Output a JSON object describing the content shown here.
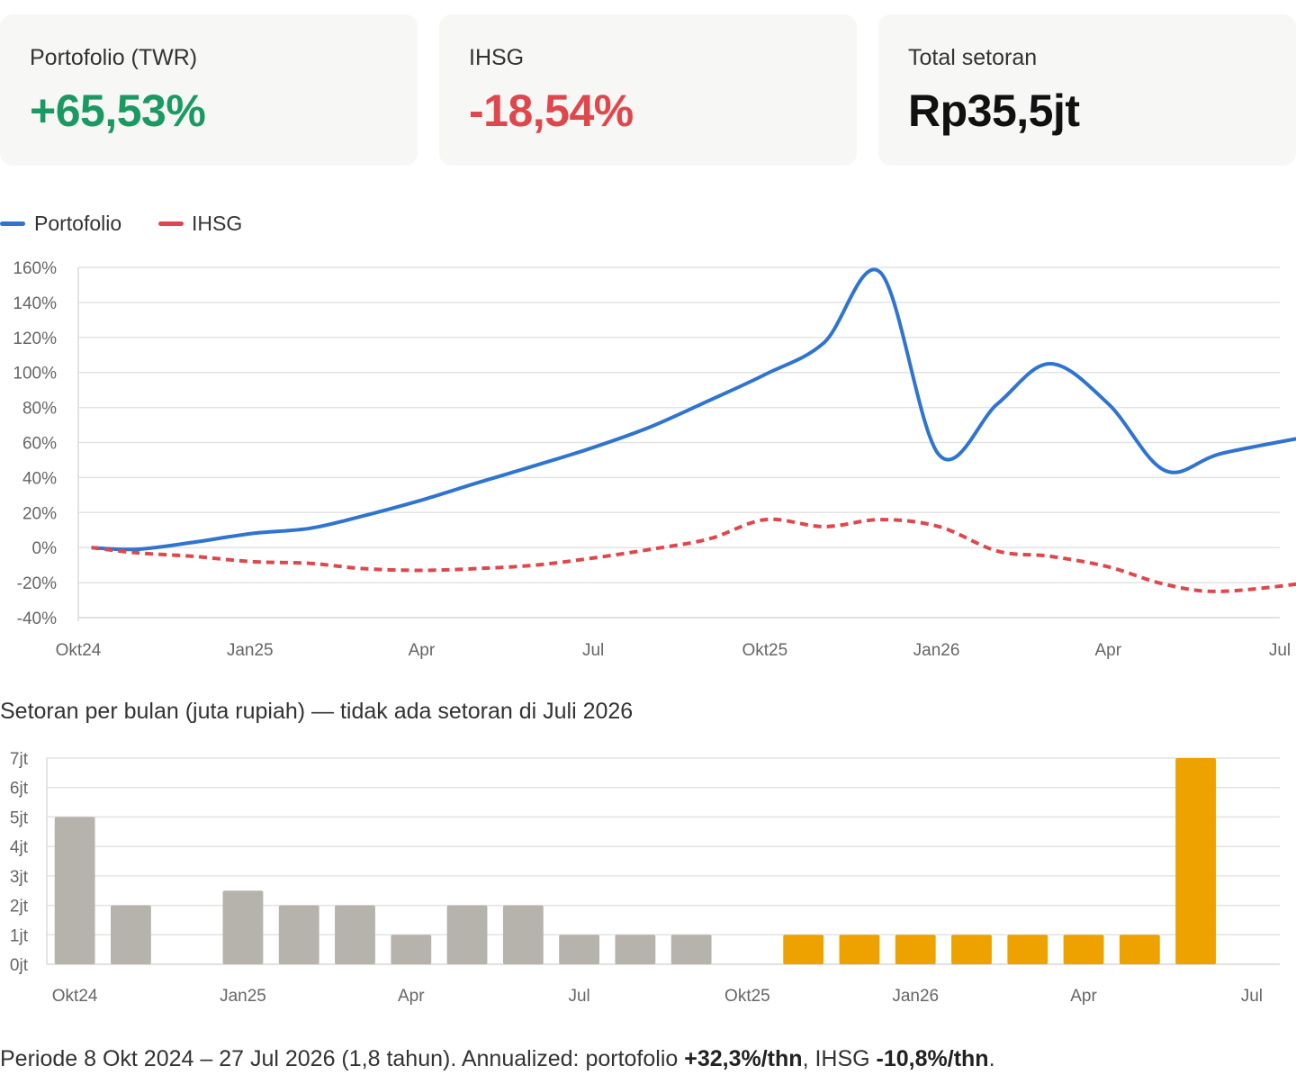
{
  "cards": [
    {
      "label": "Portofolio (TWR)",
      "value": "+65,53%",
      "color": "#1a9a62"
    },
    {
      "label": "IHSG",
      "value": "-18,54%",
      "color": "#e0474c"
    },
    {
      "label": "Total setoran",
      "value": "Rp35,5jt",
      "color": "#111111"
    }
  ],
  "legend": [
    {
      "label": "Portofolio",
      "color": "#2f74d0",
      "style": "solid"
    },
    {
      "label": "IHSG",
      "color": "#e0474c",
      "style": "dashed"
    }
  ],
  "caption": "Setoran per bulan (juta rupiah) — tidak ada setoran di Juli 2026",
  "footer": {
    "prefix": "Periode 8 Okt 2024 – 27 Jul 2026 (1,8 tahun). Annualized: portofolio ",
    "portfolio_rate": "+32,3%/thn",
    "middle": ", IHSG ",
    "ihsg_rate": "-10,8%/thn",
    "suffix": "."
  },
  "chart_data": [
    {
      "type": "line",
      "x": [
        "2024-10-08",
        "2024-11-01",
        "2024-12-01",
        "2025-01-01",
        "2025-02-01",
        "2025-03-01",
        "2025-04-01",
        "2025-05-01",
        "2025-06-01",
        "2025-07-01",
        "2025-08-01",
        "2025-09-01",
        "2025-10-01",
        "2025-11-01",
        "2025-12-01",
        "2026-01-01",
        "2026-02-01",
        "2026-03-01",
        "2026-04-01",
        "2026-05-01",
        "2026-06-01",
        "2026-07-27"
      ],
      "series": [
        {
          "name": "Portofolio",
          "color": "#2f74d0",
          "style": "solid",
          "values": [
            0,
            -1,
            3,
            8,
            11,
            18,
            27,
            37,
            47,
            57,
            69,
            84,
            99,
            117,
            157,
            53,
            82,
            105,
            82,
            44,
            54,
            65.53
          ]
        },
        {
          "name": "IHSG",
          "color": "#e0474c",
          "style": "dashed",
          "values": [
            0,
            -3,
            -5,
            -8,
            -9,
            -12,
            -13,
            -12,
            -10,
            -6,
            -1,
            5,
            16,
            12,
            16,
            12,
            -2,
            -5,
            -11,
            -21,
            -25,
            -18.54
          ]
        }
      ],
      "x_ticks": [
        "Okt24",
        "Jan25",
        "Apr",
        "Jul",
        "Okt25",
        "Jan26",
        "Apr",
        "Jul"
      ],
      "y_ticks": [
        "160%",
        "140%",
        "120%",
        "100%",
        "80%",
        "60%",
        "40%",
        "20%",
        "0%",
        "-20%",
        "-40%"
      ],
      "ylim": [
        -40,
        160
      ],
      "grid": true,
      "legend": "top-left"
    },
    {
      "type": "bar",
      "title": "Setoran per bulan (juta rupiah) — tidak ada setoran di Juli 2026",
      "categories": [
        "Okt24",
        "Nov24",
        "Des24",
        "Jan25",
        "Feb25",
        "Mar25",
        "Apr25",
        "Mei25",
        "Jun25",
        "Jul25",
        "Agu25",
        "Sep25",
        "Okt25",
        "Nov25",
        "Des25",
        "Jan26",
        "Feb26",
        "Mar26",
        "Apr26",
        "Mei26",
        "Jun26",
        "Jul26"
      ],
      "values": [
        5,
        2,
        0,
        2.5,
        2,
        2,
        1,
        2,
        2,
        1,
        1,
        1,
        0,
        1,
        1,
        1,
        1,
        1,
        1,
        1,
        7,
        0
      ],
      "colors": [
        "#b5b3ab",
        "#b5b3ab",
        "#b5b3ab",
        "#b5b3ab",
        "#b5b3ab",
        "#b5b3ab",
        "#b5b3ab",
        "#b5b3ab",
        "#b5b3ab",
        "#b5b3ab",
        "#b5b3ab",
        "#b5b3ab",
        "#b5b3ab",
        "#eea200",
        "#eea200",
        "#eea200",
        "#eea200",
        "#eea200",
        "#eea200",
        "#eea200",
        "#eea200",
        "#eea200"
      ],
      "x_ticks": [
        "Okt24",
        "Jan25",
        "Apr",
        "Jul",
        "Okt25",
        "Jan26",
        "Apr",
        "Jul"
      ],
      "y_ticks": [
        "7jt",
        "6jt",
        "5jt",
        "4jt",
        "3jt",
        "2jt",
        "1jt",
        "0jt"
      ],
      "ylim": [
        0,
        7
      ],
      "grid": true
    }
  ]
}
